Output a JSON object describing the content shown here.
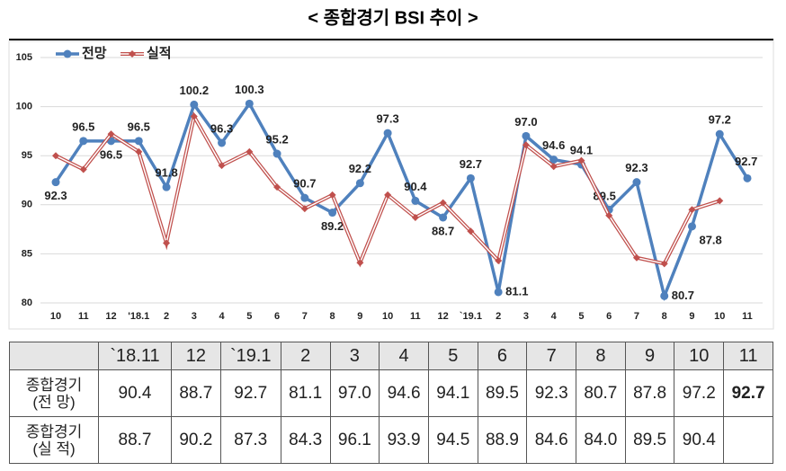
{
  "chart_data": {
    "type": "line",
    "title": "< 종합경기 BSI 추이 >",
    "categories": [
      "10",
      "11",
      "12",
      "'18.1",
      "2",
      "3",
      "4",
      "5",
      "6",
      "7",
      "8",
      "9",
      "10",
      "11",
      "12",
      "`19.1",
      "2",
      "3",
      "4",
      "5",
      "6",
      "7",
      "8",
      "9",
      "10",
      "11"
    ],
    "series": [
      {
        "name": "전망",
        "color": "#4f81bd",
        "values": [
          92.3,
          96.5,
          96.5,
          96.5,
          91.8,
          100.2,
          96.3,
          100.3,
          95.2,
          90.7,
          89.2,
          92.2,
          97.3,
          90.4,
          88.7,
          92.7,
          81.1,
          97,
          94.6,
          94.1,
          89.5,
          92.3,
          80.7,
          87.8,
          97.2,
          92.7
        ],
        "value_labels": [
          "92.3",
          "96.5",
          "96.5",
          "96.5",
          "91.8",
          "100.2",
          "96.3",
          "100.3",
          "95.2",
          "90.7",
          "89.2",
          "92.2",
          "97.3",
          "90.4",
          "88.7",
          "92.7",
          "81.1",
          "97.0",
          "94.6",
          "94.1",
          "89.5",
          "92.3",
          "80.7",
          "87.8",
          "97.2",
          "92.7"
        ]
      },
      {
        "name": "실적",
        "color": "#c0504d",
        "values": [
          95.0,
          93.6,
          97.2,
          95.4,
          86.1,
          99.0,
          94.0,
          95.4,
          91.8,
          89.6,
          91.0,
          84.1,
          91.0,
          88.7,
          90.2,
          87.3,
          84.3,
          96.1,
          93.9,
          94.5,
          88.9,
          84.6,
          84.0,
          89.5,
          90.4,
          null
        ]
      }
    ],
    "ylim": [
      80,
      105
    ],
    "yticks": [
      80,
      85,
      90,
      95,
      100,
      105
    ],
    "grid": true
  },
  "table": {
    "header": [
      "`18.11",
      "12",
      "`19.1",
      "2",
      "3",
      "4",
      "5",
      "6",
      "7",
      "8",
      "9",
      "10",
      "11"
    ],
    "rows": [
      {
        "label": [
          "종합경기",
          "(전 망)"
        ],
        "cells": [
          "90.4",
          "88.7",
          "92.7",
          "81.1",
          "97.0",
          "94.6",
          "94.1",
          "89.5",
          "92.3",
          "80.7",
          "87.8",
          "97.2",
          "92.7"
        ]
      },
      {
        "label": [
          "종합경기",
          "(실 적)"
        ],
        "cells": [
          "88.7",
          "90.2",
          "87.3",
          "84.3",
          "96.1",
          "93.9",
          "94.5",
          "88.9",
          "84.6",
          "84.0",
          "89.5",
          "90.4"
        ]
      }
    ]
  }
}
